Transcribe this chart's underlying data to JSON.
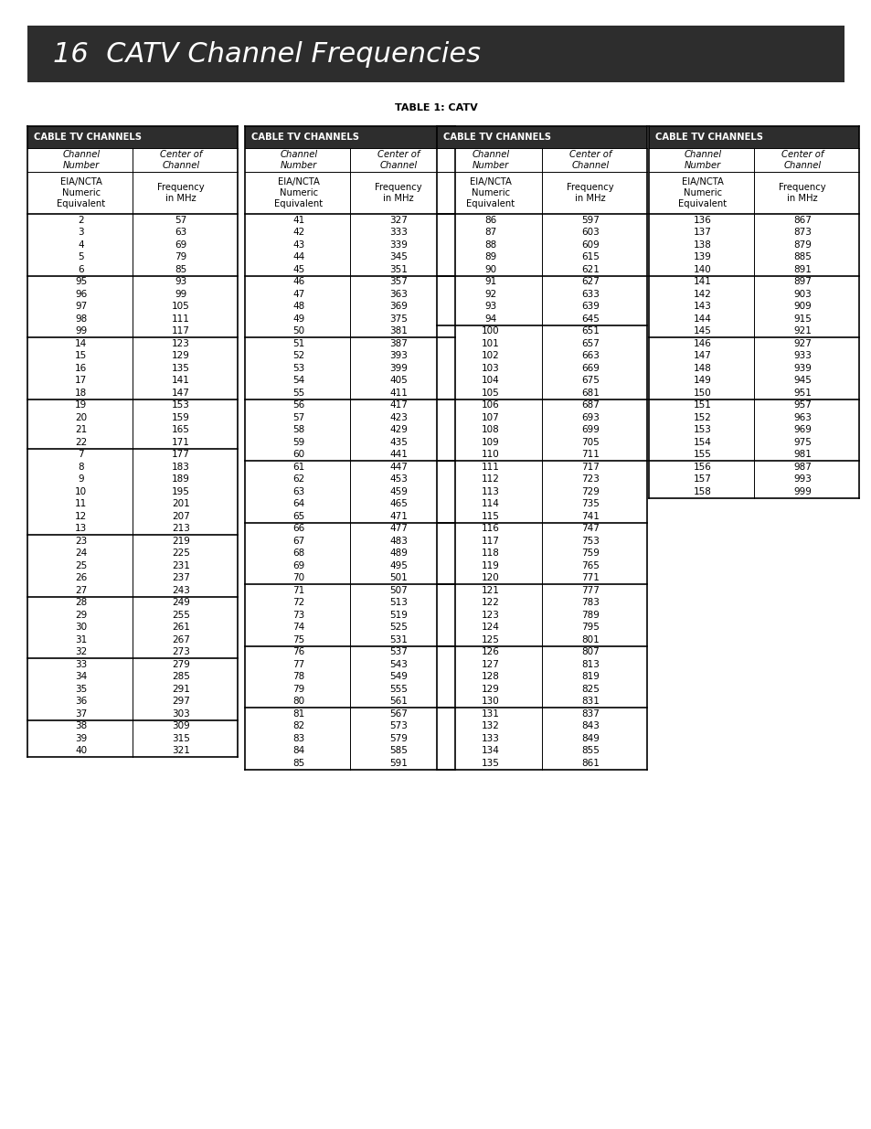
{
  "title": "16  CATV Channel Frequencies",
  "subtitle": "TABLE 1: CATV",
  "title_bg": "#2d2d2d",
  "title_color": "#ffffff",
  "table_header_bg": "#2d2d2d",
  "table_header_color": "#ffffff",
  "col1_groups": [
    [
      [
        "2",
        "57"
      ],
      [
        "3",
        "63"
      ],
      [
        "4",
        "69"
      ],
      [
        "5",
        "79"
      ],
      [
        "6",
        "85"
      ]
    ],
    [
      [
        "95",
        "93"
      ],
      [
        "96",
        "99"
      ],
      [
        "97",
        "105"
      ],
      [
        "98",
        "111"
      ],
      [
        "99",
        "117"
      ]
    ],
    [
      [
        "14",
        "123"
      ],
      [
        "15",
        "129"
      ],
      [
        "16",
        "135"
      ],
      [
        "17",
        "141"
      ],
      [
        "18",
        "147"
      ]
    ],
    [
      [
        "19",
        "153"
      ],
      [
        "20",
        "159"
      ],
      [
        "21",
        "165"
      ],
      [
        "22",
        "171"
      ]
    ],
    [
      [
        "7",
        "177"
      ],
      [
        "8",
        "183"
      ],
      [
        "9",
        "189"
      ],
      [
        "10",
        "195"
      ],
      [
        "11",
        "201"
      ],
      [
        "12",
        "207"
      ],
      [
        "13",
        "213"
      ]
    ],
    [
      [
        "23",
        "219"
      ],
      [
        "24",
        "225"
      ],
      [
        "25",
        "231"
      ],
      [
        "26",
        "237"
      ],
      [
        "27",
        "243"
      ]
    ],
    [
      [
        "28",
        "249"
      ],
      [
        "29",
        "255"
      ],
      [
        "30",
        "261"
      ],
      [
        "31",
        "267"
      ],
      [
        "32",
        "273"
      ]
    ],
    [
      [
        "33",
        "279"
      ],
      [
        "34",
        "285"
      ],
      [
        "35",
        "291"
      ],
      [
        "36",
        "297"
      ],
      [
        "37",
        "303"
      ]
    ],
    [
      [
        "38",
        "309"
      ],
      [
        "39",
        "315"
      ],
      [
        "40",
        "321"
      ]
    ]
  ],
  "col2_groups": [
    [
      [
        "41",
        "327"
      ],
      [
        "42",
        "333"
      ],
      [
        "43",
        "339"
      ],
      [
        "44",
        "345"
      ],
      [
        "45",
        "351"
      ]
    ],
    [
      [
        "46",
        "357"
      ],
      [
        "47",
        "363"
      ],
      [
        "48",
        "369"
      ],
      [
        "49",
        "375"
      ],
      [
        "50",
        "381"
      ]
    ],
    [
      [
        "51",
        "387"
      ],
      [
        "52",
        "393"
      ],
      [
        "53",
        "399"
      ],
      [
        "54",
        "405"
      ],
      [
        "55",
        "411"
      ]
    ],
    [
      [
        "56",
        "417"
      ],
      [
        "57",
        "423"
      ],
      [
        "58",
        "429"
      ],
      [
        "59",
        "435"
      ],
      [
        "60",
        "441"
      ]
    ],
    [
      [
        "61",
        "447"
      ],
      [
        "62",
        "453"
      ],
      [
        "63",
        "459"
      ],
      [
        "64",
        "465"
      ],
      [
        "65",
        "471"
      ]
    ],
    [
      [
        "66",
        "477"
      ],
      [
        "67",
        "483"
      ],
      [
        "68",
        "489"
      ],
      [
        "69",
        "495"
      ],
      [
        "70",
        "501"
      ]
    ],
    [
      [
        "71",
        "507"
      ],
      [
        "72",
        "513"
      ],
      [
        "73",
        "519"
      ],
      [
        "74",
        "525"
      ],
      [
        "75",
        "531"
      ]
    ],
    [
      [
        "76",
        "537"
      ],
      [
        "77",
        "543"
      ],
      [
        "78",
        "549"
      ],
      [
        "79",
        "555"
      ],
      [
        "80",
        "561"
      ]
    ],
    [
      [
        "81",
        "567"
      ],
      [
        "82",
        "573"
      ],
      [
        "83",
        "579"
      ],
      [
        "84",
        "585"
      ],
      [
        "85",
        "591"
      ]
    ]
  ],
  "col3_groups": [
    [
      [
        "86",
        "597"
      ],
      [
        "87",
        "603"
      ],
      [
        "88",
        "609"
      ],
      [
        "89",
        "615"
      ],
      [
        "90",
        "621"
      ]
    ],
    [
      [
        "91",
        "627"
      ],
      [
        "92",
        "633"
      ],
      [
        "93",
        "639"
      ],
      [
        "94",
        "645"
      ]
    ],
    [
      [
        "100",
        "651"
      ],
      [
        "101",
        "657"
      ],
      [
        "102",
        "663"
      ],
      [
        "103",
        "669"
      ],
      [
        "104",
        "675"
      ],
      [
        "105",
        "681"
      ]
    ],
    [
      [
        "106",
        "687"
      ],
      [
        "107",
        "693"
      ],
      [
        "108",
        "699"
      ],
      [
        "109",
        "705"
      ],
      [
        "110",
        "711"
      ]
    ],
    [
      [
        "111",
        "717"
      ],
      [
        "112",
        "723"
      ],
      [
        "113",
        "729"
      ],
      [
        "114",
        "735"
      ],
      [
        "115",
        "741"
      ]
    ],
    [
      [
        "116",
        "747"
      ],
      [
        "117",
        "753"
      ],
      [
        "118",
        "759"
      ],
      [
        "119",
        "765"
      ],
      [
        "120",
        "771"
      ]
    ],
    [
      [
        "121",
        "777"
      ],
      [
        "122",
        "783"
      ],
      [
        "123",
        "789"
      ],
      [
        "124",
        "795"
      ],
      [
        "125",
        "801"
      ]
    ],
    [
      [
        "126",
        "807"
      ],
      [
        "127",
        "813"
      ],
      [
        "128",
        "819"
      ],
      [
        "129",
        "825"
      ],
      [
        "130",
        "831"
      ]
    ],
    [
      [
        "131",
        "837"
      ],
      [
        "132",
        "843"
      ],
      [
        "133",
        "849"
      ],
      [
        "134",
        "855"
      ],
      [
        "135",
        "861"
      ]
    ]
  ],
  "col4_groups": [
    [
      [
        "136",
        "867"
      ],
      [
        "137",
        "873"
      ],
      [
        "138",
        "879"
      ],
      [
        "139",
        "885"
      ],
      [
        "140",
        "891"
      ]
    ],
    [
      [
        "141",
        "897"
      ],
      [
        "142",
        "903"
      ],
      [
        "143",
        "909"
      ],
      [
        "144",
        "915"
      ],
      [
        "145",
        "921"
      ]
    ],
    [
      [
        "146",
        "927"
      ],
      [
        "147",
        "933"
      ],
      [
        "148",
        "939"
      ],
      [
        "149",
        "945"
      ],
      [
        "150",
        "951"
      ]
    ],
    [
      [
        "151",
        "957"
      ],
      [
        "152",
        "963"
      ],
      [
        "153",
        "969"
      ],
      [
        "154",
        "975"
      ],
      [
        "155",
        "981"
      ]
    ],
    [
      [
        "156",
        "987"
      ],
      [
        "157",
        "993"
      ],
      [
        "158",
        "999"
      ]
    ]
  ]
}
